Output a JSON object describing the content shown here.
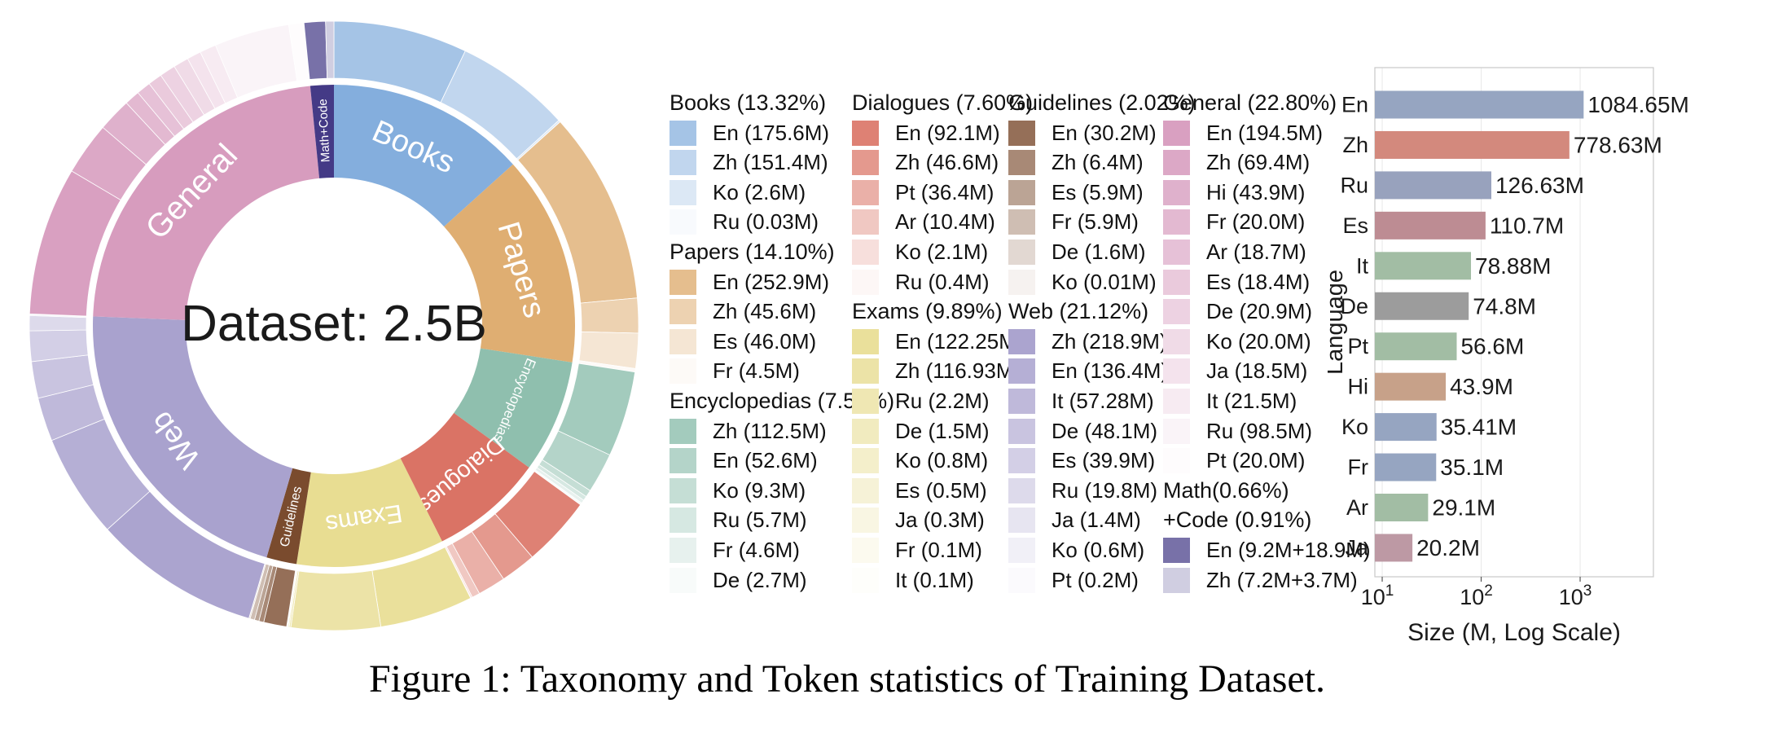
{
  "figure": {
    "caption": "Figure 1: Taxonomy and Token statistics of Training Dataset."
  },
  "chart_data": [
    {
      "type": "pie",
      "subtype": "sunburst-donut",
      "center_label": "Dataset: 2.5B",
      "unit": "M tokens",
      "categories": [
        {
          "name": "Books",
          "legend_header": "Books (13.32%)",
          "percent": 13.32,
          "color": "#84aedd",
          "tint": [
            0.27,
            0.94
          ],
          "label_mode": "tangent",
          "label_size": 38,
          "languages": [
            {
              "label": "En (175.6M)",
              "value": 175.6
            },
            {
              "label": "Zh (151.4M)",
              "value": 151.4
            },
            {
              "label": "Ko (2.6M)",
              "value": 2.6
            },
            {
              "label": "Ru (0.03M)",
              "value": 0.03
            }
          ]
        },
        {
          "name": "Papers",
          "legend_header": "Papers (14.10%)",
          "percent": 14.1,
          "color": "#dfae72",
          "tint": [
            0.2,
            0.94
          ],
          "label_mode": "tangent",
          "label_size": 38,
          "languages": [
            {
              "label": "En (252.9M)",
              "value": 252.9
            },
            {
              "label": "Zh (45.6M)",
              "value": 45.6
            },
            {
              "label": "Es (46.0M)",
              "value": 46.0
            },
            {
              "label": "Fr (4.5M)",
              "value": 4.5
            }
          ]
        },
        {
          "name": "Encyclopedias",
          "legend_header": "Encyclopedias (7.57%)",
          "percent": 7.57,
          "color": "#8fbfae",
          "tint": [
            0.18,
            0.94
          ],
          "label_mode": "tangent",
          "label_size": 17,
          "languages": [
            {
              "label": "Zh (112.5M)",
              "value": 112.5
            },
            {
              "label": "En (52.6M)",
              "value": 52.6
            },
            {
              "label": "Ko (9.3M)",
              "value": 9.3
            },
            {
              "label": "Ru (5.7M)",
              "value": 5.7
            },
            {
              "label": "Fr (4.6M)",
              "value": 4.6
            },
            {
              "label": "De (2.7M)",
              "value": 2.7
            }
          ]
        },
        {
          "name": "Dialogues",
          "legend_header": "Dialogues (7.60%)",
          "percent": 7.6,
          "color": "#da7365",
          "tint": [
            0.1,
            0.94
          ],
          "label_mode": "tangent",
          "label_size": 29,
          "languages": [
            {
              "label": "En (92.1M)",
              "value": 92.1
            },
            {
              "label": "Zh (46.6M)",
              "value": 46.6
            },
            {
              "label": "Pt (36.4M)",
              "value": 36.4
            },
            {
              "label": "Ar (10.4M)",
              "value": 10.4
            },
            {
              "label": "Ko (2.1M)",
              "value": 2.1
            },
            {
              "label": "Ru (0.4M)",
              "value": 0.4
            }
          ]
        },
        {
          "name": "Exams",
          "legend_header": "Exams (9.89%)",
          "percent": 9.89,
          "color": "#e8dd92",
          "tint": [
            0.08,
            0.96
          ],
          "label_mode": "tangent",
          "label_size": 31,
          "languages": [
            {
              "label": "En (122.25M)",
              "value": 122.25
            },
            {
              "label": "Zh (116.93M)",
              "value": 116.93
            },
            {
              "label": "Ru (2.2M)",
              "value": 2.2
            },
            {
              "label": "De (1.5M)",
              "value": 1.5
            },
            {
              "label": "Ko (0.8M)",
              "value": 0.8
            },
            {
              "label": "Es (0.5M)",
              "value": 0.5
            },
            {
              "label": "Ja (0.3M)",
              "value": 0.3
            },
            {
              "label": "Fr (0.1M)",
              "value": 0.1
            },
            {
              "label": "It (0.1M)",
              "value": 0.1
            }
          ]
        },
        {
          "name": "Guidelines",
          "legend_header": "Guidelines (2.02%)",
          "percent": 2.02,
          "color": "#7a4b2e",
          "tint": [
            0.2,
            0.93
          ],
          "label_mode": "radial",
          "label_size": 16,
          "languages": [
            {
              "label": "En (30.2M)",
              "value": 30.2
            },
            {
              "label": "Zh (6.4M)",
              "value": 6.4
            },
            {
              "label": "Es (5.9M)",
              "value": 5.9
            },
            {
              "label": "Fr (5.9M)",
              "value": 5.9
            },
            {
              "label": "De (1.6M)",
              "value": 1.6
            },
            {
              "label": "Ko (0.01M)",
              "value": 0.01
            }
          ]
        },
        {
          "name": "Web",
          "legend_header": "Web (21.12%)",
          "percent": 21.12,
          "color": "#a9a2ce",
          "tint": [
            0.02,
            0.95
          ],
          "label_mode": "tangent",
          "label_size": 37,
          "languages": [
            {
              "label": "Zh (218.9M)",
              "value": 218.9
            },
            {
              "label": "En (136.4M)",
              "value": 136.4
            },
            {
              "label": "It (57.28M)",
              "value": 57.28
            },
            {
              "label": "De (48.1M)",
              "value": 48.1
            },
            {
              "label": "Es (39.9M)",
              "value": 39.9
            },
            {
              "label": "Ru (19.8M)",
              "value": 19.8
            },
            {
              "label": "Ja (1.4M)",
              "value": 1.4
            },
            {
              "label": "Ko (0.6M)",
              "value": 0.6
            },
            {
              "label": "Pt (0.2M)",
              "value": 0.2
            }
          ]
        },
        {
          "name": "General",
          "legend_header": "General (22.80%)",
          "percent": 22.8,
          "color": "#d79cbe",
          "tint": [
            0.04,
            0.97
          ],
          "label_mode": "tangent",
          "label_size": 40,
          "languages": [
            {
              "label": "En (194.5M)",
              "value": 194.5
            },
            {
              "label": "Zh (69.4M)",
              "value": 69.4
            },
            {
              "label": "Hi (43.9M)",
              "value": 43.9
            },
            {
              "label": "Fr (20.0M)",
              "value": 20.0
            },
            {
              "label": "Ar (18.7M)",
              "value": 18.7
            },
            {
              "label": "Es (18.4M)",
              "value": 18.4
            },
            {
              "label": "De (20.9M)",
              "value": 20.9
            },
            {
              "label": "Ko (20.0M)",
              "value": 20.0
            },
            {
              "label": "Ja (18.5M)",
              "value": 18.5
            },
            {
              "label": "It (21.5M)",
              "value": 21.5
            },
            {
              "label": "Ru (98.5M)",
              "value": 98.5
            },
            {
              "label": "Pt (20.0M)",
              "value": 20.0
            }
          ]
        },
        {
          "name": "Math+Code",
          "legend_header_lines": [
            "Math(0.66%)",
            "+Code (0.91%)"
          ],
          "percent": 1.57,
          "color": "#443a86",
          "tint": [
            0.28,
            0.75
          ],
          "label_mode": "radial",
          "label_size": 15,
          "languages": [
            {
              "label": "En (9.2M+18.9M)",
              "value": 28.1
            },
            {
              "label": "Zh (7.2M+3.7M)",
              "value": 10.9
            }
          ]
        }
      ]
    },
    {
      "type": "bar",
      "orientation": "horizontal",
      "xscale": "log",
      "xlabel": "Size (M, Log Scale)",
      "ylabel": "Language",
      "xlim": [
        8.43,
        5500
      ],
      "xticks": [
        {
          "value": 10,
          "base": "10",
          "exp": "1"
        },
        {
          "value": 100,
          "base": "10",
          "exp": "2"
        },
        {
          "value": 1000,
          "base": "10",
          "exp": "3"
        }
      ],
      "bars": [
        {
          "label": "En",
          "value": 1084.65,
          "display": "1084.65M",
          "color": "#96a5c1"
        },
        {
          "label": "Zh",
          "value": 778.63,
          "display": "778.63M",
          "color": "#d3897d"
        },
        {
          "label": "Ru",
          "value": 126.63,
          "display": "126.63M",
          "color": "#98a2bd"
        },
        {
          "label": "Es",
          "value": 110.7,
          "display": "110.7M",
          "color": "#bd8c93"
        },
        {
          "label": "It",
          "value": 78.88,
          "display": "78.88M",
          "color": "#a2bda4"
        },
        {
          "label": "De",
          "value": 74.8,
          "display": "74.8M",
          "color": "#9c9c9c"
        },
        {
          "label": "Pt",
          "value": 56.6,
          "display": "56.6M",
          "color": "#a2bda4"
        },
        {
          "label": "Hi",
          "value": 43.9,
          "display": "43.9M",
          "color": "#c7a189"
        },
        {
          "label": "Ko",
          "value": 35.41,
          "display": "35.41M",
          "color": "#96a5c1"
        },
        {
          "label": "Fr",
          "value": 35.1,
          "display": "35.1M",
          "color": "#96a5c1"
        },
        {
          "label": "Ar",
          "value": 29.1,
          "display": "29.1M",
          "color": "#a2bda4"
        },
        {
          "label": "Ja",
          "value": 20.2,
          "display": "20.2M",
          "color": "#bd99a4"
        }
      ]
    }
  ],
  "legend": {
    "columns": [
      [
        "Books",
        "Papers",
        "Encyclopedias"
      ],
      [
        "Dialogues",
        "Exams"
      ],
      [
        "Guidelines",
        "Web"
      ],
      [
        "General",
        "Math+Code"
      ]
    ]
  }
}
